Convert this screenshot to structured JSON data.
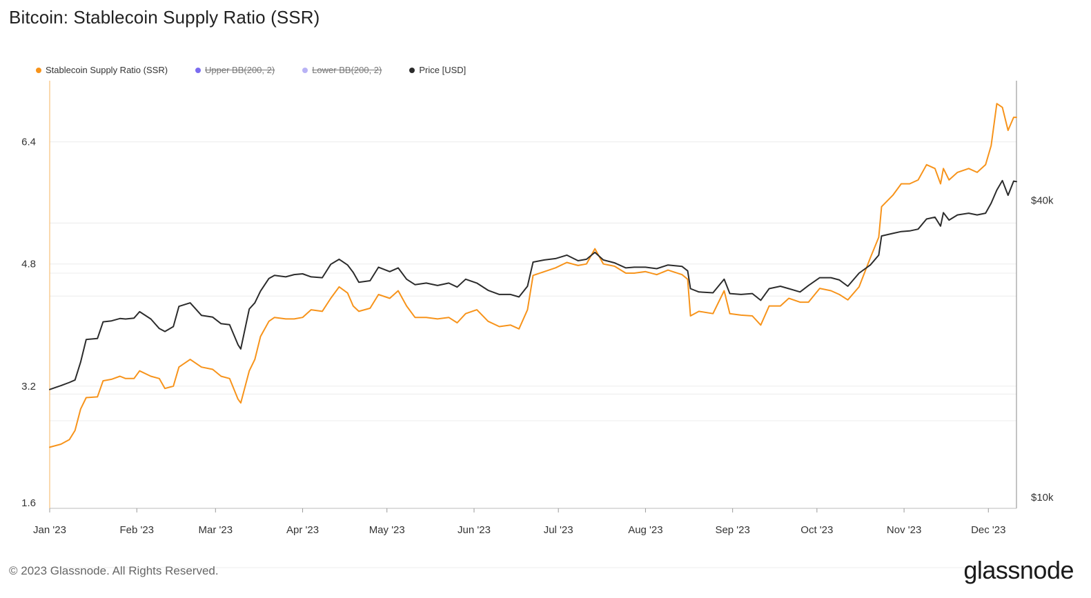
{
  "header": {
    "title": "Bitcoin: Stablecoin Supply Ratio (SSR)"
  },
  "legend": [
    {
      "label": "Stablecoin Supply Ratio (SSR)",
      "color": "#f7931a",
      "disabled": false
    },
    {
      "label": "Upper BB(200, 2)",
      "color": "#7b6cf0",
      "disabled": true
    },
    {
      "label": "Lower BB(200, 2)",
      "color": "#b8b2f5",
      "disabled": true
    },
    {
      "label": "Price [USD]",
      "color": "#2b2b2b",
      "disabled": false
    }
  ],
  "footer": {
    "copyright": "© 2023 Glassnode. All Rights Reserved.",
    "logo_text": "glassnode"
  },
  "chart_data": {
    "type": "line",
    "title": "Bitcoin: Stablecoin Supply Ratio (SSR)",
    "x_ticks": [
      "Jan '23",
      "Feb '23",
      "Mar '23",
      "Apr '23",
      "May '23",
      "Jun '23",
      "Jul '23",
      "Aug '23",
      "Sep '23",
      "Oct '23",
      "Nov '23",
      "Dec '23"
    ],
    "y_left": {
      "ticks": [
        "1.6",
        "3.2",
        "4.8",
        "6.4"
      ],
      "tick_values": [
        1.6,
        3.2,
        4.8,
        6.4
      ],
      "range": [
        1.6,
        7.2
      ]
    },
    "y_right": {
      "ticks": [
        "$10k",
        "$40k"
      ],
      "tick_values": [
        10000,
        40000
      ],
      "scale": "log",
      "range": [
        9500,
        70000
      ]
    },
    "x_range": [
      "2023-01-01",
      "2023-12-11"
    ],
    "grid": true,
    "legend_position": "top-left",
    "series": [
      {
        "name": "Stablecoin Supply Ratio (SSR)",
        "color": "#f7931a",
        "axis": "left",
        "points": [
          [
            "2023-01-01",
            2.4
          ],
          [
            "2023-01-05",
            2.44
          ],
          [
            "2023-01-08",
            2.5
          ],
          [
            "2023-01-10",
            2.62
          ],
          [
            "2023-01-12",
            2.9
          ],
          [
            "2023-01-14",
            3.05
          ],
          [
            "2023-01-18",
            3.06
          ],
          [
            "2023-01-20",
            3.27
          ],
          [
            "2023-01-23",
            3.29
          ],
          [
            "2023-01-26",
            3.33
          ],
          [
            "2023-01-28",
            3.3
          ],
          [
            "2023-01-31",
            3.3
          ],
          [
            "2023-02-02",
            3.4
          ],
          [
            "2023-02-06",
            3.33
          ],
          [
            "2023-02-09",
            3.3
          ],
          [
            "2023-02-11",
            3.17
          ],
          [
            "2023-02-14",
            3.2
          ],
          [
            "2023-02-16",
            3.45
          ],
          [
            "2023-02-20",
            3.55
          ],
          [
            "2023-02-24",
            3.45
          ],
          [
            "2023-02-28",
            3.42
          ],
          [
            "2023-03-03",
            3.33
          ],
          [
            "2023-03-06",
            3.3
          ],
          [
            "2023-03-09",
            3.03
          ],
          [
            "2023-03-10",
            2.98
          ],
          [
            "2023-03-13",
            3.4
          ],
          [
            "2023-03-15",
            3.55
          ],
          [
            "2023-03-17",
            3.85
          ],
          [
            "2023-03-20",
            4.05
          ],
          [
            "2023-03-22",
            4.1
          ],
          [
            "2023-03-26",
            4.08
          ],
          [
            "2023-03-29",
            4.08
          ],
          [
            "2023-04-01",
            4.1
          ],
          [
            "2023-04-04",
            4.2
          ],
          [
            "2023-04-08",
            4.18
          ],
          [
            "2023-04-11",
            4.35
          ],
          [
            "2023-04-14",
            4.5
          ],
          [
            "2023-04-17",
            4.42
          ],
          [
            "2023-04-19",
            4.25
          ],
          [
            "2023-04-21",
            4.18
          ],
          [
            "2023-04-25",
            4.22
          ],
          [
            "2023-04-28",
            4.4
          ],
          [
            "2023-05-02",
            4.35
          ],
          [
            "2023-05-05",
            4.45
          ],
          [
            "2023-05-08",
            4.25
          ],
          [
            "2023-05-11",
            4.1
          ],
          [
            "2023-05-15",
            4.1
          ],
          [
            "2023-05-19",
            4.08
          ],
          [
            "2023-05-23",
            4.1
          ],
          [
            "2023-05-26",
            4.03
          ],
          [
            "2023-05-29",
            4.15
          ],
          [
            "2023-06-02",
            4.2
          ],
          [
            "2023-06-06",
            4.05
          ],
          [
            "2023-06-10",
            3.98
          ],
          [
            "2023-06-14",
            4.0
          ],
          [
            "2023-06-17",
            3.95
          ],
          [
            "2023-06-20",
            4.2
          ],
          [
            "2023-06-22",
            4.65
          ],
          [
            "2023-06-26",
            4.7
          ],
          [
            "2023-06-30",
            4.75
          ],
          [
            "2023-07-04",
            4.82
          ],
          [
            "2023-07-08",
            4.78
          ],
          [
            "2023-07-11",
            4.8
          ],
          [
            "2023-07-14",
            5.0
          ],
          [
            "2023-07-17",
            4.8
          ],
          [
            "2023-07-21",
            4.77
          ],
          [
            "2023-07-25",
            4.68
          ],
          [
            "2023-07-28",
            4.68
          ],
          [
            "2023-08-01",
            4.7
          ],
          [
            "2023-08-05",
            4.66
          ],
          [
            "2023-08-09",
            4.72
          ],
          [
            "2023-08-14",
            4.66
          ],
          [
            "2023-08-16",
            4.6
          ],
          [
            "2023-08-17",
            4.12
          ],
          [
            "2023-08-20",
            4.18
          ],
          [
            "2023-08-25",
            4.15
          ],
          [
            "2023-08-29",
            4.45
          ],
          [
            "2023-08-31",
            4.15
          ],
          [
            "2023-09-04",
            4.13
          ],
          [
            "2023-09-08",
            4.12
          ],
          [
            "2023-09-11",
            4.0
          ],
          [
            "2023-09-14",
            4.25
          ],
          [
            "2023-09-18",
            4.25
          ],
          [
            "2023-09-21",
            4.35
          ],
          [
            "2023-09-25",
            4.3
          ],
          [
            "2023-09-28",
            4.3
          ],
          [
            "2023-10-02",
            4.48
          ],
          [
            "2023-10-06",
            4.45
          ],
          [
            "2023-10-09",
            4.4
          ],
          [
            "2023-10-12",
            4.33
          ],
          [
            "2023-10-16",
            4.5
          ],
          [
            "2023-10-20",
            4.88
          ],
          [
            "2023-10-23",
            5.15
          ],
          [
            "2023-10-24",
            5.55
          ],
          [
            "2023-10-28",
            5.7
          ],
          [
            "2023-10-31",
            5.85
          ],
          [
            "2023-11-03",
            5.85
          ],
          [
            "2023-11-06",
            5.9
          ],
          [
            "2023-11-09",
            6.1
          ],
          [
            "2023-11-12",
            6.05
          ],
          [
            "2023-11-14",
            5.85
          ],
          [
            "2023-11-15",
            6.05
          ],
          [
            "2023-11-17",
            5.9
          ],
          [
            "2023-11-20",
            6.0
          ],
          [
            "2023-11-24",
            6.05
          ],
          [
            "2023-11-27",
            6.0
          ],
          [
            "2023-11-30",
            6.1
          ],
          [
            "2023-12-02",
            6.35
          ],
          [
            "2023-12-04",
            6.9
          ],
          [
            "2023-12-06",
            6.85
          ],
          [
            "2023-12-08",
            6.55
          ],
          [
            "2023-12-10",
            6.72
          ],
          [
            "2023-12-11",
            6.72
          ]
        ]
      },
      {
        "name": "Price [USD]",
        "color": "#2b2b2b",
        "axis": "right",
        "points": [
          [
            "2023-01-01",
            16550
          ],
          [
            "2023-01-05",
            16850
          ],
          [
            "2023-01-08",
            17100
          ],
          [
            "2023-01-10",
            17300
          ],
          [
            "2023-01-12",
            18800
          ],
          [
            "2023-01-14",
            20900
          ],
          [
            "2023-01-18",
            21000
          ],
          [
            "2023-01-20",
            22700
          ],
          [
            "2023-01-23",
            22800
          ],
          [
            "2023-01-26",
            23050
          ],
          [
            "2023-01-28",
            23000
          ],
          [
            "2023-01-31",
            23100
          ],
          [
            "2023-02-02",
            23800
          ],
          [
            "2023-02-06",
            23000
          ],
          [
            "2023-02-09",
            22000
          ],
          [
            "2023-02-11",
            21700
          ],
          [
            "2023-02-14",
            22200
          ],
          [
            "2023-02-16",
            24400
          ],
          [
            "2023-02-20",
            24800
          ],
          [
            "2023-02-24",
            23400
          ],
          [
            "2023-02-28",
            23200
          ],
          [
            "2023-03-03",
            22500
          ],
          [
            "2023-03-06",
            22400
          ],
          [
            "2023-03-09",
            20400
          ],
          [
            "2023-03-10",
            20000
          ],
          [
            "2023-03-13",
            24100
          ],
          [
            "2023-03-15",
            24800
          ],
          [
            "2023-03-17",
            26200
          ],
          [
            "2023-03-20",
            27800
          ],
          [
            "2023-03-22",
            28200
          ],
          [
            "2023-03-26",
            28000
          ],
          [
            "2023-03-29",
            28300
          ],
          [
            "2023-04-01",
            28400
          ],
          [
            "2023-04-04",
            28000
          ],
          [
            "2023-04-08",
            27900
          ],
          [
            "2023-04-11",
            29700
          ],
          [
            "2023-04-14",
            30400
          ],
          [
            "2023-04-17",
            29600
          ],
          [
            "2023-04-19",
            28600
          ],
          [
            "2023-04-21",
            27300
          ],
          [
            "2023-04-25",
            27500
          ],
          [
            "2023-04-28",
            29300
          ],
          [
            "2023-05-02",
            28700
          ],
          [
            "2023-05-05",
            29200
          ],
          [
            "2023-05-08",
            27700
          ],
          [
            "2023-05-11",
            27000
          ],
          [
            "2023-05-15",
            27200
          ],
          [
            "2023-05-19",
            26900
          ],
          [
            "2023-05-23",
            27200
          ],
          [
            "2023-05-26",
            26700
          ],
          [
            "2023-05-29",
            27700
          ],
          [
            "2023-06-02",
            27200
          ],
          [
            "2023-06-06",
            26300
          ],
          [
            "2023-06-10",
            25800
          ],
          [
            "2023-06-14",
            25800
          ],
          [
            "2023-06-17",
            25500
          ],
          [
            "2023-06-20",
            26800
          ],
          [
            "2023-06-22",
            30000
          ],
          [
            "2023-06-26",
            30300
          ],
          [
            "2023-06-30",
            30500
          ],
          [
            "2023-07-04",
            31000
          ],
          [
            "2023-07-08",
            30200
          ],
          [
            "2023-07-11",
            30400
          ],
          [
            "2023-07-14",
            31400
          ],
          [
            "2023-07-17",
            30300
          ],
          [
            "2023-07-21",
            29900
          ],
          [
            "2023-07-25",
            29200
          ],
          [
            "2023-07-28",
            29300
          ],
          [
            "2023-08-01",
            29300
          ],
          [
            "2023-08-05",
            29100
          ],
          [
            "2023-08-09",
            29600
          ],
          [
            "2023-08-14",
            29400
          ],
          [
            "2023-08-16",
            28800
          ],
          [
            "2023-08-17",
            26500
          ],
          [
            "2023-08-20",
            26100
          ],
          [
            "2023-08-25",
            26000
          ],
          [
            "2023-08-29",
            27700
          ],
          [
            "2023-08-31",
            25900
          ],
          [
            "2023-09-04",
            25800
          ],
          [
            "2023-09-08",
            25900
          ],
          [
            "2023-09-11",
            25100
          ],
          [
            "2023-09-14",
            26500
          ],
          [
            "2023-09-18",
            26800
          ],
          [
            "2023-09-21",
            26500
          ],
          [
            "2023-09-25",
            26100
          ],
          [
            "2023-09-28",
            26900
          ],
          [
            "2023-10-02",
            27900
          ],
          [
            "2023-10-06",
            27900
          ],
          [
            "2023-10-09",
            27600
          ],
          [
            "2023-10-12",
            26800
          ],
          [
            "2023-10-16",
            28500
          ],
          [
            "2023-10-20",
            29600
          ],
          [
            "2023-10-23",
            31000
          ],
          [
            "2023-10-24",
            33900
          ],
          [
            "2023-10-28",
            34300
          ],
          [
            "2023-10-31",
            34600
          ],
          [
            "2023-11-03",
            34700
          ],
          [
            "2023-11-06",
            35000
          ],
          [
            "2023-11-09",
            36700
          ],
          [
            "2023-11-12",
            37000
          ],
          [
            "2023-11-14",
            35500
          ],
          [
            "2023-11-15",
            37800
          ],
          [
            "2023-11-17",
            36500
          ],
          [
            "2023-11-20",
            37400
          ],
          [
            "2023-11-24",
            37700
          ],
          [
            "2023-11-27",
            37400
          ],
          [
            "2023-11-30",
            37700
          ],
          [
            "2023-12-02",
            39500
          ],
          [
            "2023-12-04",
            42000
          ],
          [
            "2023-12-06",
            43900
          ],
          [
            "2023-12-08",
            41000
          ],
          [
            "2023-12-10",
            43800
          ],
          [
            "2023-12-11",
            43700
          ]
        ]
      }
    ]
  }
}
